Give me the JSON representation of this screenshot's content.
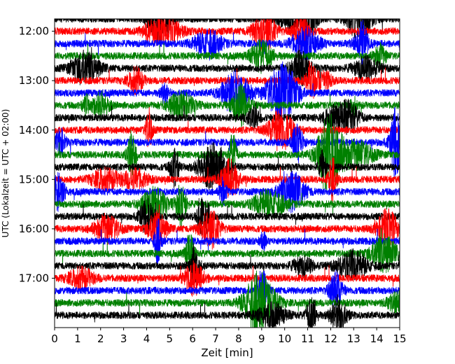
{
  "chart_data": {
    "type": "line",
    "title": "",
    "xlabel": "Zeit  [min]",
    "ylabel": "UTC (Lokalzeit = UTC + 02:00)",
    "xlim": [
      0,
      15
    ],
    "x_ticks": [
      0,
      1,
      2,
      3,
      4,
      5,
      6,
      7,
      8,
      9,
      10,
      11,
      12,
      13,
      14,
      15
    ],
    "x_tick_labels": [
      "0",
      "1",
      "2",
      "3",
      "4",
      "5",
      "6",
      "7",
      "8",
      "9",
      "10",
      "11",
      "12",
      "13",
      "14",
      "15"
    ],
    "y_ticks": [
      "12:00",
      "13:00",
      "14:00",
      "15:00",
      "16:00",
      "17:00"
    ],
    "y_range_start": "11:45",
    "y_range_end": "18:00",
    "trace_interval_minutes": 15,
    "trace_start_times": [
      "11:45",
      "12:00",
      "12:15",
      "12:30",
      "12:45",
      "13:00",
      "13:15",
      "13:30",
      "13:45",
      "14:00",
      "14:15",
      "14:30",
      "14:45",
      "15:00",
      "15:15",
      "15:30",
      "15:45",
      "16:00",
      "16:15",
      "16:30",
      "16:45",
      "17:00",
      "17:15",
      "17:30",
      "17:45"
    ],
    "trace_color_cycle": [
      "#000000",
      "#ff0000",
      "#0000ff",
      "#008000"
    ],
    "grid": false,
    "legend": "none"
  }
}
